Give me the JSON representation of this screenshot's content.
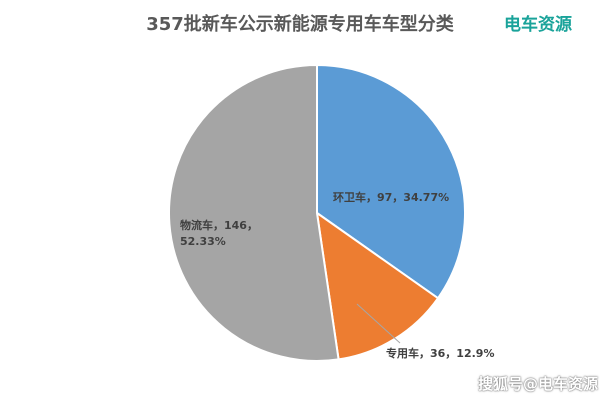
{
  "header": {
    "title": "357批新车公示新能源专用车车型分类",
    "brand": "电车资源"
  },
  "watermark": "搜狐号@电车资源",
  "chart_data": {
    "type": "pie",
    "title": "357批新车公示新能源专用车车型分类",
    "slices": [
      {
        "label": "环卫车",
        "value": 97,
        "percent": "34.77%",
        "text_lines": [
          "环卫车，97，34.77%"
        ],
        "color": "#5b9bd5"
      },
      {
        "label": "专用车",
        "value": 36,
        "percent": "12.9%",
        "text_lines": [
          "专用车，36，12.9%"
        ],
        "color": "#ed7d31"
      },
      {
        "label": "物流车",
        "value": 146,
        "percent": "52.33%",
        "text_lines": [
          "物流车，146，",
          "52.33%"
        ],
        "color": "#a5a5a5"
      }
    ],
    "start_angle_deg": 0,
    "direction": "clockwise",
    "legend": "none"
  }
}
